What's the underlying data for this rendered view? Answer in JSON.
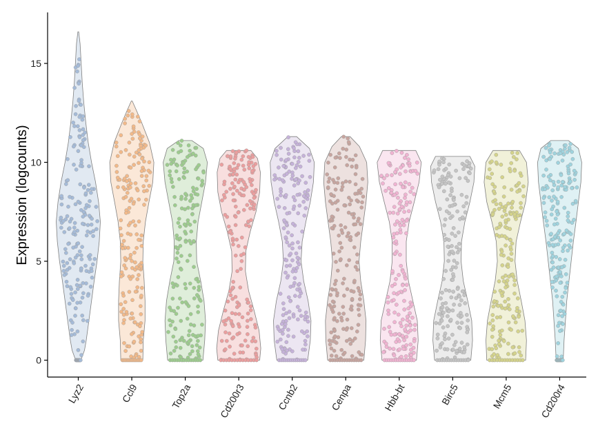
{
  "chart_data": {
    "type": "violin",
    "ylabel": "Expression (logcounts)",
    "xlabel": "",
    "ylim": [
      -0.8,
      17.5
    ],
    "yticks": [
      0,
      5,
      10,
      15
    ],
    "grid": false,
    "points": "jittered",
    "categories": [
      "Lyz2",
      "Ccl9",
      "Top2a",
      "Cd200r3",
      "Ccnb2",
      "Cenpa",
      "Hbb-bt",
      "Birc5",
      "Mcm5",
      "Cd200r4"
    ],
    "series": [
      {
        "category": "Lyz2",
        "color": "#a5bbd8",
        "max": 16.6,
        "density": [
          [
            0,
            0.12
          ],
          [
            0.5,
            0.28
          ],
          [
            1,
            0.36
          ],
          [
            2,
            0.48
          ],
          [
            3,
            0.6
          ],
          [
            4,
            0.72
          ],
          [
            5,
            0.85
          ],
          [
            6,
            0.95
          ],
          [
            7,
            1.0
          ],
          [
            8,
            0.92
          ],
          [
            9,
            0.78
          ],
          [
            10,
            0.6
          ],
          [
            11,
            0.45
          ],
          [
            12,
            0.34
          ],
          [
            13,
            0.25
          ],
          [
            14,
            0.18
          ],
          [
            15,
            0.13
          ],
          [
            16,
            0.08
          ],
          [
            16.6,
            0.02
          ]
        ]
      },
      {
        "category": "Ccl9",
        "color": "#f2b989",
        "max": 13.1,
        "density": [
          [
            0,
            0.5
          ],
          [
            1,
            0.52
          ],
          [
            2,
            0.6
          ],
          [
            3,
            0.6
          ],
          [
            4,
            0.56
          ],
          [
            5,
            0.5
          ],
          [
            6,
            0.52
          ],
          [
            7,
            0.62
          ],
          [
            8,
            0.78
          ],
          [
            9,
            0.95
          ],
          [
            10,
            1.0
          ],
          [
            11,
            0.8
          ],
          [
            12,
            0.45
          ],
          [
            12.6,
            0.22
          ],
          [
            13.1,
            0.02
          ]
        ]
      },
      {
        "category": "Top2a",
        "color": "#9dcc8e",
        "max": 11.1,
        "density": [
          [
            0,
            0.8
          ],
          [
            1,
            0.88
          ],
          [
            2,
            0.92
          ],
          [
            3,
            0.85
          ],
          [
            4,
            0.7
          ],
          [
            5,
            0.52
          ],
          [
            6,
            0.5
          ],
          [
            7,
            0.58
          ],
          [
            8,
            0.75
          ],
          [
            9,
            0.92
          ],
          [
            10,
            1.0
          ],
          [
            10.7,
            0.82
          ],
          [
            11.1,
            0.3
          ]
        ]
      },
      {
        "category": "Cd200r3",
        "color": "#eb9e9e",
        "max": 10.6,
        "density": [
          [
            0,
            0.95
          ],
          [
            0.6,
            1.0
          ],
          [
            1.5,
            0.92
          ],
          [
            2.5,
            0.7
          ],
          [
            3.5,
            0.45
          ],
          [
            4.5,
            0.3
          ],
          [
            5.5,
            0.32
          ],
          [
            6.5,
            0.52
          ],
          [
            7.5,
            0.78
          ],
          [
            8.5,
            0.95
          ],
          [
            9.5,
            0.98
          ],
          [
            10.2,
            0.85
          ],
          [
            10.6,
            0.55
          ]
        ]
      },
      {
        "category": "Ccnb2",
        "color": "#c5b2d9",
        "max": 11.3,
        "density": [
          [
            0,
            0.7
          ],
          [
            1,
            0.82
          ],
          [
            2,
            0.85
          ],
          [
            3,
            0.72
          ],
          [
            4,
            0.52
          ],
          [
            5,
            0.4
          ],
          [
            6,
            0.45
          ],
          [
            7,
            0.62
          ],
          [
            8,
            0.82
          ],
          [
            9,
            0.96
          ],
          [
            10,
            1.0
          ],
          [
            10.7,
            0.78
          ],
          [
            11.3,
            0.2
          ]
        ]
      },
      {
        "category": "Cenpa",
        "color": "#c7a59f",
        "max": 11.3,
        "density": [
          [
            0,
            0.82
          ],
          [
            1,
            0.9
          ],
          [
            2,
            0.92
          ],
          [
            3,
            0.82
          ],
          [
            4,
            0.68
          ],
          [
            5,
            0.6
          ],
          [
            6,
            0.68
          ],
          [
            7,
            0.8
          ],
          [
            8,
            0.92
          ],
          [
            9,
            1.0
          ],
          [
            10,
            0.95
          ],
          [
            10.8,
            0.62
          ],
          [
            11.3,
            0.2
          ]
        ]
      },
      {
        "category": "Hbb-bt",
        "color": "#f0b3d1",
        "max": 10.6,
        "density": [
          [
            0,
            0.78
          ],
          [
            1,
            0.86
          ],
          [
            2,
            0.82
          ],
          [
            3,
            0.62
          ],
          [
            4,
            0.42
          ],
          [
            5,
            0.32
          ],
          [
            6,
            0.32
          ],
          [
            7,
            0.45
          ],
          [
            8,
            0.68
          ],
          [
            9,
            0.9
          ],
          [
            10,
            1.0
          ],
          [
            10.6,
            0.75
          ]
        ]
      },
      {
        "category": "Birc5",
        "color": "#c4c4c4",
        "max": 10.3,
        "density": [
          [
            0,
            0.82
          ],
          [
            1,
            0.9
          ],
          [
            2,
            0.86
          ],
          [
            3,
            0.68
          ],
          [
            4,
            0.48
          ],
          [
            5,
            0.38
          ],
          [
            6,
            0.4
          ],
          [
            7,
            0.55
          ],
          [
            8,
            0.78
          ],
          [
            9,
            0.96
          ],
          [
            9.8,
            1.0
          ],
          [
            10.3,
            0.78
          ]
        ]
      },
      {
        "category": "Mcm5",
        "color": "#d4d38b",
        "max": 10.6,
        "density": [
          [
            0,
            0.88
          ],
          [
            1,
            0.92
          ],
          [
            2,
            0.85
          ],
          [
            3,
            0.68
          ],
          [
            4,
            0.5
          ],
          [
            5,
            0.4
          ],
          [
            6,
            0.45
          ],
          [
            7,
            0.65
          ],
          [
            8,
            0.88
          ],
          [
            9,
            1.0
          ],
          [
            10,
            0.92
          ],
          [
            10.6,
            0.6
          ]
        ]
      },
      {
        "category": "Cd200r4",
        "color": "#9fd3de",
        "max": 11.1,
        "density": [
          [
            0,
            0.16
          ],
          [
            1,
            0.2
          ],
          [
            2,
            0.26
          ],
          [
            3,
            0.32
          ],
          [
            4,
            0.42
          ],
          [
            5,
            0.52
          ],
          [
            6,
            0.62
          ],
          [
            7,
            0.74
          ],
          [
            8,
            0.85
          ],
          [
            9,
            0.96
          ],
          [
            10,
            1.0
          ],
          [
            10.7,
            0.85
          ],
          [
            11.1,
            0.4
          ]
        ]
      }
    ]
  }
}
